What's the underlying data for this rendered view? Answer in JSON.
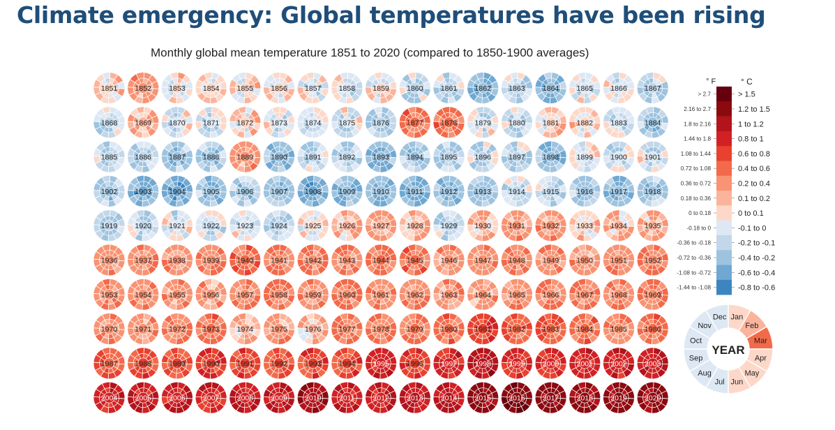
{
  "page": {
    "headline": "Climate emergency: Global temperatures have been rising"
  },
  "chart_data": {
    "type": "heatmap",
    "title": "Monthly global mean temperature 1851 to 2020 (compared to 1850-1900 averages)",
    "years": [
      1851,
      2020
    ],
    "months": [
      "Jan",
      "Feb",
      "Mar",
      "Apr",
      "May",
      "Jun",
      "Jul",
      "Aug",
      "Sep",
      "Oct",
      "Nov",
      "Dec"
    ],
    "annual_anomaly_c_estimate": [
      0.1,
      0.3,
      0.05,
      0.1,
      0.1,
      0.05,
      -0.05,
      -0.02,
      0.05,
      -0.1,
      -0.1,
      -0.3,
      -0.1,
      -0.35,
      0.0,
      -0.05,
      -0.1,
      -0.1,
      0.2,
      0.0,
      -0.05,
      0.1,
      0.0,
      -0.05,
      -0.02,
      -0.15,
      0.45,
      0.5,
      -0.05,
      -0.05,
      0.1,
      0.1,
      -0.05,
      -0.2,
      -0.15,
      -0.15,
      -0.25,
      -0.2,
      0.3,
      -0.3,
      -0.1,
      -0.15,
      -0.35,
      -0.2,
      -0.15,
      -0.1,
      -0.15,
      -0.3,
      0.0,
      -0.05,
      -0.05,
      -0.2,
      -0.4,
      -0.4,
      -0.25,
      -0.2,
      -0.3,
      -0.4,
      -0.3,
      -0.35,
      -0.35,
      -0.3,
      -0.25,
      -0.1,
      -0.1,
      -0.2,
      -0.3,
      -0.2,
      -0.1,
      -0.1,
      -0.05,
      -0.1,
      -0.05,
      -0.1,
      0.05,
      0.15,
      0.2,
      0.15,
      -0.1,
      0.2,
      0.3,
      0.3,
      0.1,
      0.15,
      0.2,
      0.25,
      0.35,
      0.35,
      0.4,
      0.5,
      0.4,
      0.4,
      0.4,
      0.5,
      0.5,
      0.25,
      0.4,
      0.4,
      0.35,
      0.25,
      0.35,
      0.4,
      0.4,
      0.35,
      0.3,
      0.25,
      0.4,
      0.4,
      0.35,
      0.4,
      0.35,
      0.35,
      0.3,
      0.25,
      0.35,
      0.4,
      0.4,
      0.35,
      0.4,
      0.35,
      0.3,
      0.4,
      0.45,
      0.2,
      0.3,
      0.15,
      0.4,
      0.4,
      0.45,
      0.5,
      0.75,
      0.6,
      0.6,
      0.5,
      0.4,
      0.45,
      0.6,
      0.7,
      0.65,
      0.75,
      0.7,
      0.65,
      0.7,
      0.7,
      0.9,
      0.75,
      0.85,
      1.05,
      0.85,
      0.85,
      0.9,
      0.9,
      0.95,
      0.95,
      1.0,
      0.95,
      0.9,
      0.95,
      1.0,
      1.15,
      1.0,
      1.0,
      1.05,
      1.05,
      1.35,
      1.45,
      1.4,
      1.25,
      1.3,
      1.35
    ],
    "legend": {
      "f_header": "° F",
      "c_header": "° C",
      "bins": [
        {
          "f": "> 2.7",
          "c": "> 1.5",
          "color": "#67000d"
        },
        {
          "f": "2.16 to 2.7",
          "c": "1.2 to 1.5",
          "color": "#8b0a10"
        },
        {
          "f": "1.8 to 2.16",
          "c": "1 to 1.2",
          "color": "#b3131b"
        },
        {
          "f": "1.44 to 1.8",
          "c": "0.8 to 1",
          "color": "#d12124"
        },
        {
          "f": "1.08 to 1.44",
          "c": "0.6 to 0.8",
          "color": "#e8412f"
        },
        {
          "f": "0.72 to 1.08",
          "c": "0.4 to 0.6",
          "color": "#f36a4a"
        },
        {
          "f": "0.36 to 0.72",
          "c": "0.2 to 0.4",
          "color": "#f89373"
        },
        {
          "f": "0.18 to 0.36",
          "c": "0.1 to 0.2",
          "color": "#fbb49c"
        },
        {
          "f": "0 to 0.18",
          "c": "0 to 0.1",
          "color": "#fdd8c8"
        },
        {
          "f": "-0.18 to 0",
          "c": "-0.1 to 0",
          "color": "#dde8f4"
        },
        {
          "f": "-0.36 to -0.18",
          "c": "-0.2 to -0.1",
          "color": "#c2d7ea"
        },
        {
          "f": "-0.72 to -0.36",
          "c": "-0.4 to -0.2",
          "color": "#9dc3df"
        },
        {
          "f": "-1.08 to -0.72",
          "c": "-0.6 to -0.4",
          "color": "#6fa8d2"
        },
        {
          "f": "-1.44 to -1.08",
          "c": "-0.8 to -0.6",
          "color": "#3d85c0"
        }
      ]
    },
    "key": {
      "center": "YEAR",
      "month_labels": [
        "Jan",
        "Feb",
        "Mar",
        "Apr",
        "May",
        "Jun",
        "Jul",
        "Aug",
        "Sep",
        "Oct",
        "Nov",
        "Dec"
      ],
      "month_anomaly_c": [
        0.05,
        0.15,
        0.5,
        0.1,
        0.05,
        0.05,
        -0.05,
        -0.05,
        -0.05,
        -0.05,
        -0.05,
        -0.05
      ]
    }
  }
}
